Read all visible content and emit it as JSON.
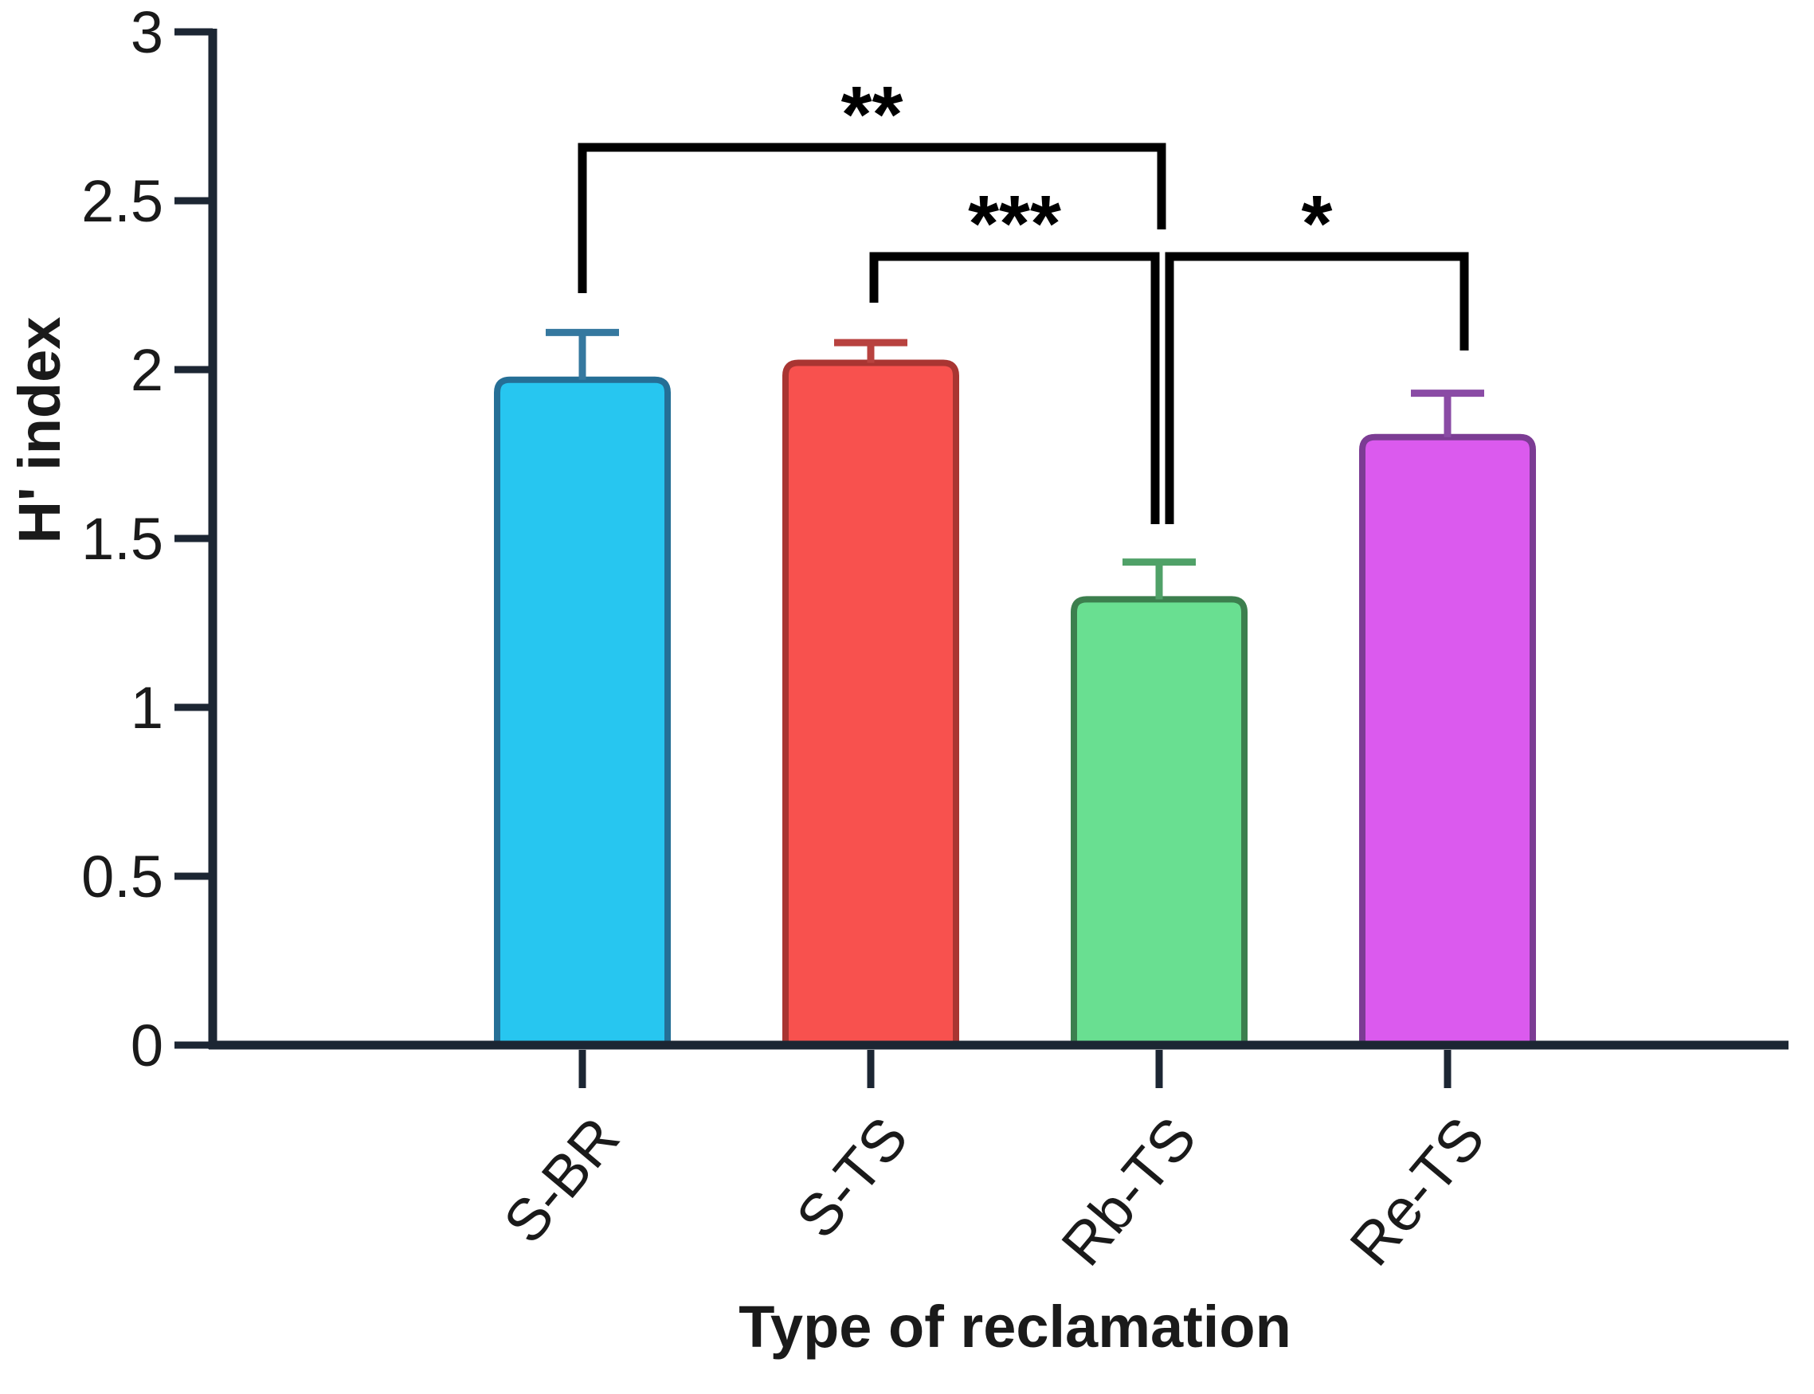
{
  "figure": {
    "background": "#ffffff"
  },
  "chart_data": {
    "type": "bar",
    "title": "",
    "xlabel": "Type of reclamation",
    "ylabel": "H' index",
    "categories": [
      "S-BR",
      "S-TS",
      "Rb-TS",
      "Re-TS"
    ],
    "values": [
      1.97,
      2.02,
      1.32,
      1.8
    ],
    "errors_upper": [
      0.14,
      0.06,
      0.11,
      0.13
    ],
    "ylim": [
      0,
      3
    ],
    "yticks": [
      0,
      0.5,
      1,
      1.5,
      2,
      2.5,
      3
    ],
    "ytick_labels": [
      "0",
      "0.5",
      "1",
      "1.5",
      "2",
      "2.5",
      "3"
    ],
    "grid": false,
    "legend": "none",
    "bar_styles": [
      {
        "fill": "#27c6f0",
        "stroke": "#256f96",
        "error": "#35789f"
      },
      {
        "fill": "#f8514e",
        "stroke": "#a93532",
        "error": "#b8423f"
      },
      {
        "fill": "#69df91",
        "stroke": "#3c7f4e",
        "error": "#50a168"
      },
      {
        "fill": "#db5aee",
        "stroke": "#7c3c94",
        "error": "#8a4ba5"
      }
    ],
    "significance": [
      {
        "group1": "S-BR",
        "group2": "Rb-TS",
        "label": "**"
      },
      {
        "group1": "S-TS",
        "group2": "Rb-TS",
        "label": "***"
      },
      {
        "group1": "Rb-TS",
        "group2": "Re-TS",
        "label": "*"
      }
    ],
    "axis_color": "#1c2633",
    "annotation_color": "#000000",
    "text_color": "#1a1a1a"
  }
}
